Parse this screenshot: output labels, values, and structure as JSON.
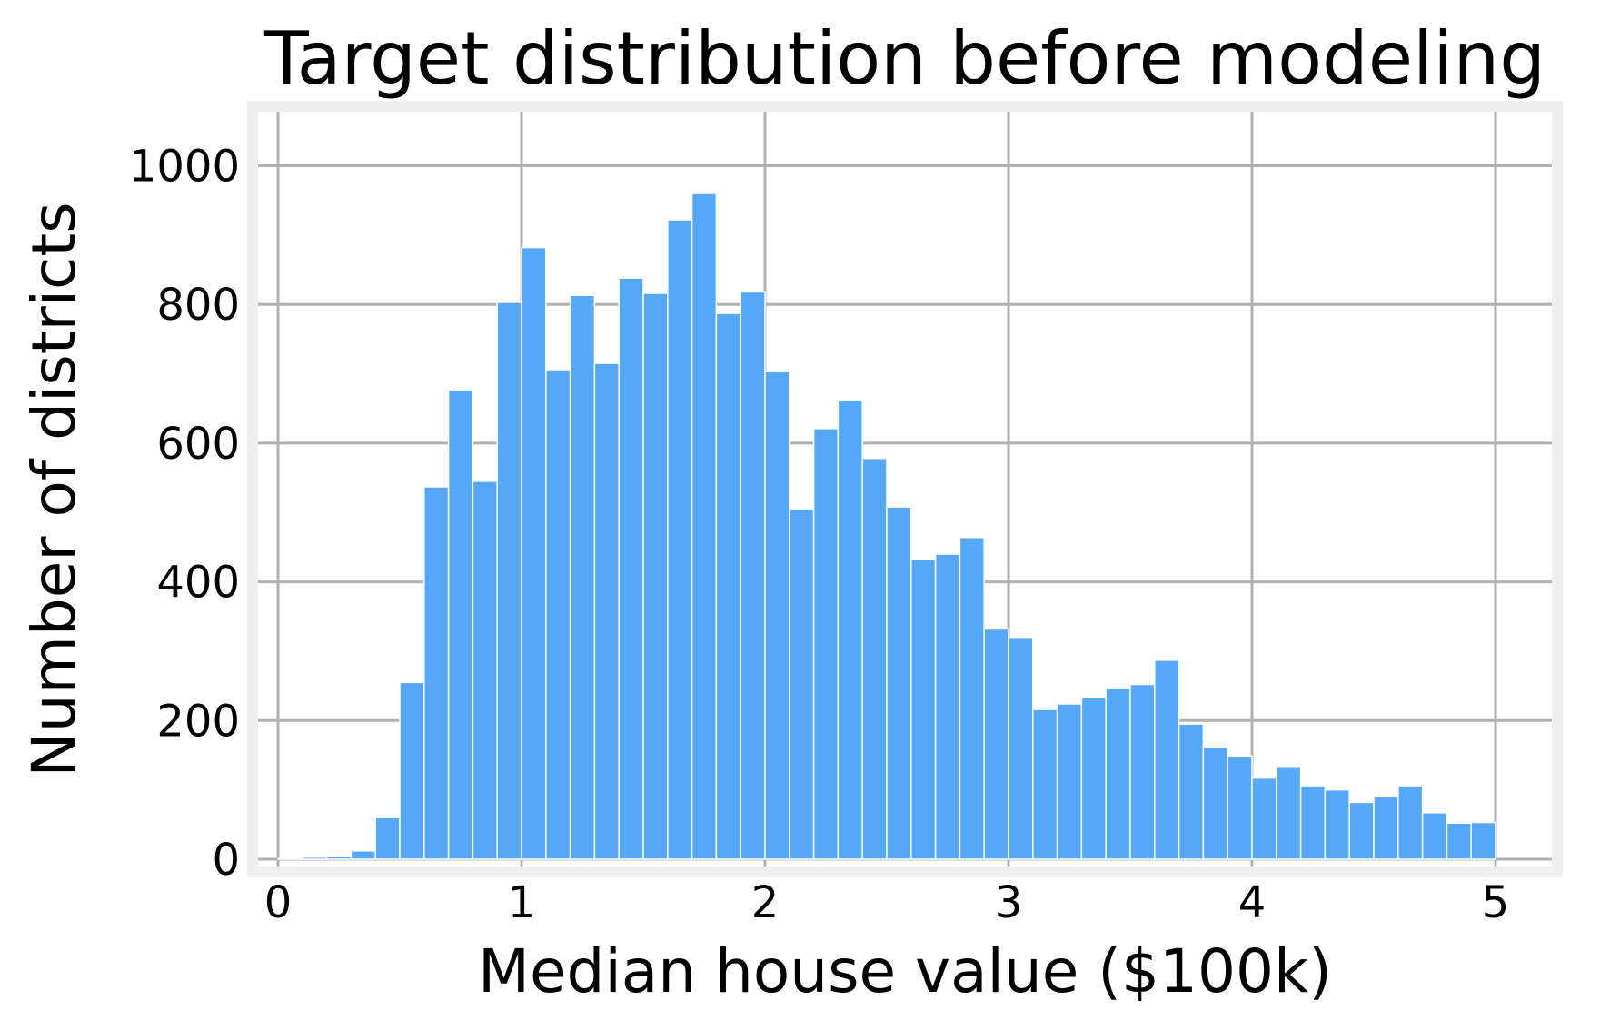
{
  "chart_data": {
    "type": "bar",
    "title": "Target distribution before modeling",
    "xlabel": "Median house value ($100k)",
    "ylabel": "Number of districts",
    "xlim": [
      -0.1,
      5.3
    ],
    "ylim": [
      0,
      1080
    ],
    "xticks": [
      0,
      1,
      2,
      3,
      4,
      5
    ],
    "yticks": [
      0,
      200,
      400,
      600,
      800,
      1000
    ],
    "grid": true,
    "bar_color": "#55a7f8",
    "bin_width": 0.1,
    "bins_start": [
      0.0,
      0.1,
      0.2,
      0.3,
      0.4,
      0.5,
      0.6,
      0.7,
      0.8,
      0.9,
      1.0,
      1.1,
      1.2,
      1.3,
      1.4,
      1.5,
      1.6,
      1.7,
      1.8,
      1.9,
      2.0,
      2.1,
      2.2,
      2.3,
      2.4,
      2.5,
      2.6,
      2.7,
      2.8,
      2.9,
      3.0,
      3.1,
      3.2,
      3.3,
      3.4,
      3.5,
      3.6,
      3.7,
      3.8,
      3.9,
      4.0,
      4.1,
      4.2,
      4.3,
      4.4,
      4.5,
      4.6,
      4.7,
      4.8,
      4.9
    ],
    "values": [
      1,
      3,
      4,
      12,
      60,
      255,
      537,
      677,
      545,
      803,
      882,
      706,
      813,
      715,
      838,
      816,
      922,
      960,
      787,
      818,
      703,
      505,
      621,
      662,
      578,
      508,
      432,
      440,
      464,
      332,
      320,
      216,
      224,
      233,
      246,
      252,
      287,
      195,
      162,
      149,
      117,
      134,
      106,
      100,
      82,
      90,
      106,
      67,
      52,
      53
    ]
  }
}
